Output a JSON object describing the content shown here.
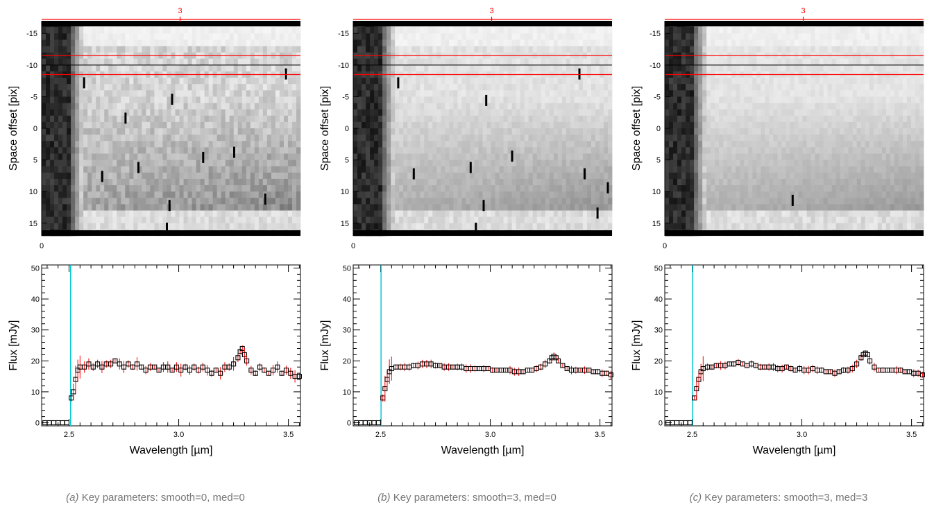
{
  "colors": {
    "marker": "#000000",
    "error_bar": "#ff0000",
    "aperture_line": "#ff0000",
    "center_line": "#000000",
    "cutoff_line": "#00c8d2"
  },
  "chart_data": [
    {
      "id": "a",
      "caption_tag": "(a)",
      "caption_text": "Key parameters: smooth=0, med=0",
      "image": {
        "type": "heatmap",
        "ylabel": "Space offset [pix]",
        "y_tick_labels": [
          "-15",
          "-10",
          "-5",
          "0",
          "5",
          "10",
          "15"
        ],
        "y_tick_values": [
          -15,
          -10,
          -5,
          0,
          5,
          10,
          15
        ],
        "ylim": [
          -17,
          17
        ],
        "x_tick_label": "0",
        "top_marker_label": "3",
        "aperture_bounds": [
          -11.5,
          -8.5
        ],
        "center_row": -10,
        "noise_level": 1.0,
        "bad_pixels": [
          [
            0.16,
            -7.2
          ],
          [
            0.32,
            -1.6
          ],
          [
            0.5,
            -4.6
          ],
          [
            0.94,
            -8.6
          ],
          [
            0.37,
            6.2
          ],
          [
            0.23,
            7.6
          ],
          [
            0.62,
            4.6
          ],
          [
            0.74,
            3.8
          ],
          [
            0.49,
            12.2
          ],
          [
            0.86,
            11.2
          ],
          [
            0.48,
            15.8
          ]
        ]
      },
      "spectrum": {
        "type": "scatter",
        "xlabel": "Wavelength [µm]",
        "ylabel": "Flux [mJy]",
        "x_tick_labels": [
          "2.5",
          "3.0",
          "3.5"
        ],
        "x_tick_values": [
          2.5,
          3.0,
          3.5
        ],
        "y_tick_labels": [
          "0",
          "10",
          "20",
          "30",
          "40",
          "50"
        ],
        "y_tick_values": [
          0,
          10,
          20,
          30,
          40,
          50
        ],
        "xlim": [
          2.375,
          3.555
        ],
        "ylim": [
          -1,
          51
        ],
        "cutoff_x": 2.507,
        "x": [
          2.39,
          2.41,
          2.43,
          2.45,
          2.47,
          2.49,
          2.51,
          2.52,
          2.53,
          2.54,
          2.55,
          2.57,
          2.59,
          2.61,
          2.63,
          2.65,
          2.67,
          2.69,
          2.71,
          2.73,
          2.75,
          2.77,
          2.79,
          2.81,
          2.83,
          2.85,
          2.87,
          2.89,
          2.91,
          2.93,
          2.95,
          2.97,
          2.99,
          3.01,
          3.03,
          3.05,
          3.07,
          3.09,
          3.11,
          3.13,
          3.15,
          3.17,
          3.19,
          3.21,
          3.23,
          3.25,
          3.27,
          3.28,
          3.29,
          3.3,
          3.31,
          3.33,
          3.35,
          3.37,
          3.39,
          3.41,
          3.43,
          3.45,
          3.47,
          3.49,
          3.51,
          3.53,
          3.55
        ],
        "y": [
          0,
          0,
          0,
          0,
          0,
          0,
          8,
          10,
          14,
          17,
          18,
          18,
          19,
          18,
          19,
          18,
          19,
          19,
          20,
          19,
          18,
          19,
          18,
          19,
          18,
          17,
          18,
          18,
          17,
          18,
          18,
          17,
          18,
          17,
          18,
          17,
          18,
          17,
          18,
          17,
          16,
          17,
          16,
          18,
          18,
          19,
          21,
          23,
          24,
          22,
          20,
          17,
          16,
          18,
          17,
          16,
          17,
          18,
          16,
          17,
          16,
          15,
          15
        ]
      }
    },
    {
      "id": "b",
      "caption_tag": "(b)",
      "caption_text": "Key parameters: smooth=3, med=0",
      "image": {
        "type": "heatmap",
        "ylabel": "Space offset [pix]",
        "y_tick_labels": [
          "-15",
          "-10",
          "-5",
          "0",
          "5",
          "10",
          "15"
        ],
        "y_tick_values": [
          -15,
          -10,
          -5,
          0,
          5,
          10,
          15
        ],
        "ylim": [
          -17,
          17
        ],
        "x_tick_label": "0",
        "top_marker_label": "3",
        "aperture_bounds": [
          -11.5,
          -8.5
        ],
        "center_row": -10,
        "noise_level": 0.45,
        "bad_pixels": [
          [
            0.17,
            -7.2
          ],
          [
            0.51,
            -4.4
          ],
          [
            0.87,
            -8.6
          ],
          [
            0.61,
            4.4
          ],
          [
            0.45,
            6.2
          ],
          [
            0.23,
            7.2
          ],
          [
            0.89,
            7.2
          ],
          [
            0.98,
            9.4
          ],
          [
            0.5,
            12.2
          ],
          [
            0.94,
            13.4
          ],
          [
            0.47,
            15.8
          ]
        ]
      },
      "spectrum": {
        "type": "scatter",
        "xlabel": "Wavelength [µm]",
        "ylabel": "Flux [mJy]",
        "x_tick_labels": [
          "2.5",
          "3.0",
          "3.5"
        ],
        "x_tick_values": [
          2.5,
          3.0,
          3.5
        ],
        "y_tick_labels": [
          "0",
          "10",
          "20",
          "30",
          "40",
          "50"
        ],
        "y_tick_values": [
          0,
          10,
          20,
          30,
          40,
          50
        ],
        "xlim": [
          2.375,
          3.555
        ],
        "ylim": [
          -1,
          51
        ],
        "cutoff_x": 2.502,
        "x": [
          2.39,
          2.41,
          2.43,
          2.45,
          2.47,
          2.49,
          2.51,
          2.52,
          2.53,
          2.54,
          2.55,
          2.57,
          2.59,
          2.61,
          2.63,
          2.65,
          2.67,
          2.69,
          2.71,
          2.73,
          2.75,
          2.77,
          2.79,
          2.81,
          2.83,
          2.85,
          2.87,
          2.89,
          2.91,
          2.93,
          2.95,
          2.97,
          2.99,
          3.01,
          3.03,
          3.05,
          3.07,
          3.09,
          3.11,
          3.13,
          3.15,
          3.17,
          3.19,
          3.21,
          3.23,
          3.25,
          3.27,
          3.28,
          3.29,
          3.3,
          3.31,
          3.33,
          3.35,
          3.37,
          3.39,
          3.41,
          3.43,
          3.45,
          3.47,
          3.49,
          3.51,
          3.53,
          3.55
        ],
        "y": [
          0,
          0,
          0,
          0,
          0,
          0,
          8,
          11,
          14,
          16.5,
          17.5,
          18,
          18,
          18,
          18,
          18.5,
          18.5,
          19,
          19,
          19,
          18.5,
          18.5,
          18,
          18,
          18,
          18,
          18,
          17.5,
          17.5,
          17.5,
          17.5,
          17.5,
          17.5,
          17,
          17,
          17,
          17,
          17,
          16.5,
          16.5,
          16.5,
          17,
          17,
          17.5,
          18,
          19,
          20,
          21,
          21.5,
          21,
          20,
          18.5,
          17.5,
          17,
          17,
          17,
          17,
          17,
          16.5,
          16.5,
          16,
          16,
          15.5
        ]
      }
    },
    {
      "id": "c",
      "caption_tag": "(c)",
      "caption_text": "Key parameters: smooth=3, med=3",
      "image": {
        "type": "heatmap",
        "ylabel": "Space offset [pix]",
        "y_tick_labels": [
          "-15",
          "-10",
          "-5",
          "0",
          "5",
          "10",
          "15"
        ],
        "y_tick_values": [
          -15,
          -10,
          -5,
          0,
          5,
          10,
          15
        ],
        "ylim": [
          -17,
          17
        ],
        "x_tick_label": "0",
        "top_marker_label": "3",
        "aperture_bounds": [
          -11.5,
          -8.5
        ],
        "center_row": -10,
        "noise_level": 0.35,
        "bad_pixels": [
          [
            0.49,
            11.4
          ]
        ]
      },
      "spectrum": {
        "type": "scatter",
        "xlabel": "Wavelength [µm]",
        "ylabel": "Flux [mJy]",
        "x_tick_labels": [
          "2.5",
          "3.0",
          "3.5"
        ],
        "x_tick_values": [
          2.5,
          3.0,
          3.5
        ],
        "y_tick_labels": [
          "0",
          "10",
          "20",
          "30",
          "40",
          "50"
        ],
        "y_tick_values": [
          0,
          10,
          20,
          30,
          40,
          50
        ],
        "xlim": [
          2.375,
          3.555
        ],
        "ylim": [
          -1,
          51
        ],
        "cutoff_x": 2.502,
        "x": [
          2.39,
          2.41,
          2.43,
          2.45,
          2.47,
          2.49,
          2.51,
          2.52,
          2.53,
          2.54,
          2.55,
          2.57,
          2.59,
          2.61,
          2.63,
          2.65,
          2.67,
          2.69,
          2.71,
          2.73,
          2.75,
          2.77,
          2.79,
          2.81,
          2.83,
          2.85,
          2.87,
          2.89,
          2.91,
          2.93,
          2.95,
          2.97,
          2.99,
          3.01,
          3.03,
          3.05,
          3.07,
          3.09,
          3.11,
          3.13,
          3.15,
          3.17,
          3.19,
          3.21,
          3.23,
          3.25,
          3.27,
          3.28,
          3.29,
          3.3,
          3.31,
          3.33,
          3.35,
          3.37,
          3.39,
          3.41,
          3.43,
          3.45,
          3.47,
          3.49,
          3.51,
          3.53,
          3.55
        ],
        "y": [
          0,
          0,
          0,
          0,
          0,
          0,
          8,
          11,
          14,
          16.5,
          17.5,
          18,
          18,
          18.5,
          18.5,
          18.5,
          19,
          19,
          19.5,
          19,
          18.5,
          19,
          18.5,
          18,
          18,
          18,
          18,
          17.5,
          17.5,
          18,
          17.5,
          17,
          17.5,
          17,
          17,
          17.5,
          17,
          17,
          16.5,
          16.5,
          16,
          16.5,
          17,
          17,
          17.5,
          19,
          21,
          22,
          22.5,
          22,
          20,
          18,
          17,
          17,
          17,
          17,
          17,
          17,
          16.5,
          16.5,
          16,
          16,
          15.5
        ]
      }
    }
  ]
}
